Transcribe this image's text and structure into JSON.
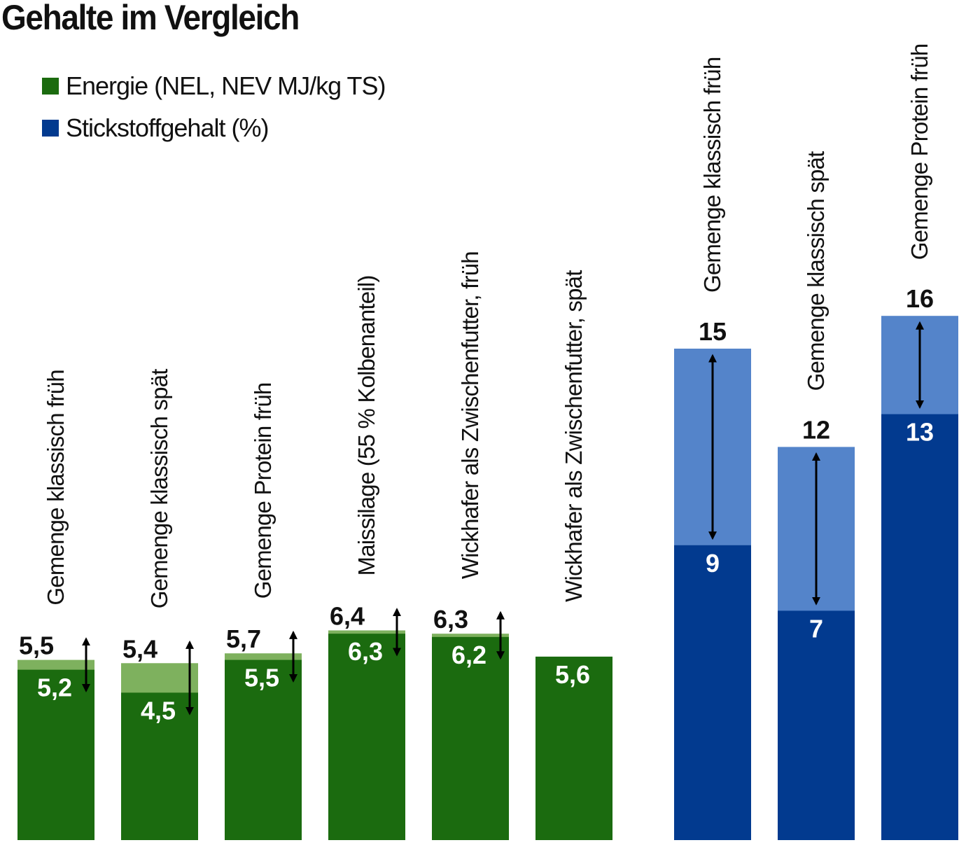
{
  "chart_data": [
    {
      "type": "bar",
      "title": "Gehalte im Vergleich",
      "legend": [
        {
          "label": "Energie (NEL, NEV MJ/kg TS)",
          "color": "#1b6b0f"
        },
        {
          "label": "Stickstoffgehalt (%)",
          "color": "#023a8f"
        }
      ],
      "legend_placement": "top-left",
      "grid": false,
      "ylim": [
        0,
        25.6
      ]
    },
    {
      "type": "bar",
      "series_name": "Energie (NEL, NEV MJ/kg TS)",
      "categories": [
        "Gemenge klassisch früh",
        "Gemenge klassisch spät",
        "Gemenge Protein früh",
        "Maissilage (55 % Kolbenanteil)",
        "Wickhafer als Zwischenfutter, früh",
        "Wickhafer als Zwischenfutter, spät"
      ],
      "low_values": [
        5.2,
        4.5,
        5.5,
        6.3,
        6.2,
        5.6
      ],
      "high_values": [
        5.5,
        5.4,
        5.7,
        6.4,
        6.3,
        null
      ],
      "low_labels": [
        "5,2",
        "4,5",
        "5,5",
        "6,3",
        "6,2",
        "5,6"
      ],
      "high_labels": [
        "5,5",
        "5,4",
        "5,7",
        "6,4",
        "6,3",
        ""
      ],
      "colors": {
        "low": "#1b6b0f",
        "high": "#7eb15e"
      }
    },
    {
      "type": "bar",
      "series_name": "Stickstoffgehalt (%)",
      "categories": [
        "Gemenge klassisch früh",
        "Gemenge klassisch spät",
        "Gemenge Protein früh"
      ],
      "low_values": [
        9,
        7,
        13
      ],
      "high_values": [
        15,
        12,
        16
      ],
      "low_labels": [
        "9",
        "7",
        "13"
      ],
      "high_labels": [
        "15",
        "12",
        "16"
      ],
      "colors": {
        "low": "#023a8f",
        "high": "#5484ca"
      }
    }
  ]
}
